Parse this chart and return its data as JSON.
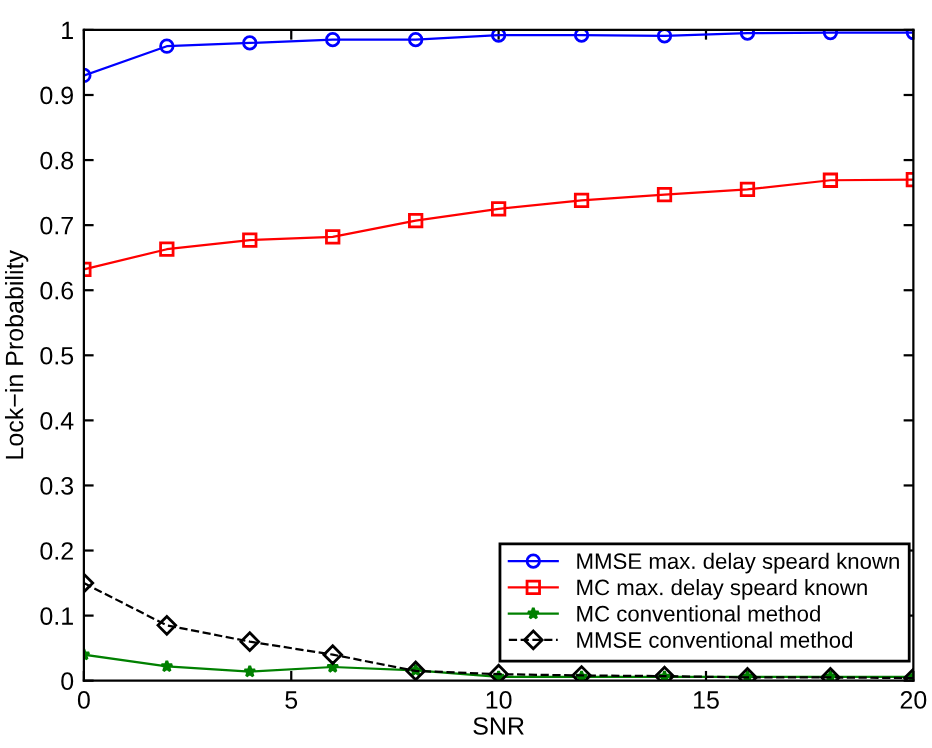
{
  "chart_data": {
    "type": "line",
    "xlabel": "SNR",
    "ylabel": "Lock−in Probability",
    "x": [
      0,
      2,
      4,
      6,
      8,
      10,
      12,
      14,
      16,
      18,
      20
    ],
    "series": [
      {
        "name": "MMSE max. delay speard known",
        "color": "#0000ff",
        "marker": "circle",
        "line_style": "solid",
        "values": [
          0.93,
          0.975,
          0.98,
          0.985,
          0.985,
          0.992,
          0.992,
          0.991,
          0.995,
          0.996,
          0.996
        ]
      },
      {
        "name": "MC max. delay speard known",
        "color": "#ff0000",
        "marker": "square",
        "line_style": "solid",
        "values": [
          0.632,
          0.663,
          0.677,
          0.682,
          0.707,
          0.725,
          0.738,
          0.747,
          0.755,
          0.769,
          0.77
        ]
      },
      {
        "name": "MC conventional method",
        "color": "#008000",
        "marker": "star",
        "line_style": "solid",
        "values": [
          0.04,
          0.022,
          0.014,
          0.021,
          0.016,
          0.006,
          0.006,
          0.006,
          0.006,
          0.006,
          0.006
        ]
      },
      {
        "name": "MMSE conventional method",
        "color": "#000000",
        "marker": "diamond",
        "line_style": "dashed",
        "values": [
          0.15,
          0.085,
          0.06,
          0.04,
          0.015,
          0.01,
          0.008,
          0.007,
          0.005,
          0.005,
          0.004
        ]
      }
    ],
    "xlim": [
      0,
      20
    ],
    "xticks": [
      0,
      5,
      10,
      15,
      20
    ],
    "ylim": [
      0,
      1
    ],
    "yticks": [
      0,
      0.1,
      0.2,
      0.3,
      0.4,
      0.5,
      0.6,
      0.7,
      0.8,
      0.9,
      1
    ],
    "grid": false,
    "legend": "bottom right"
  }
}
